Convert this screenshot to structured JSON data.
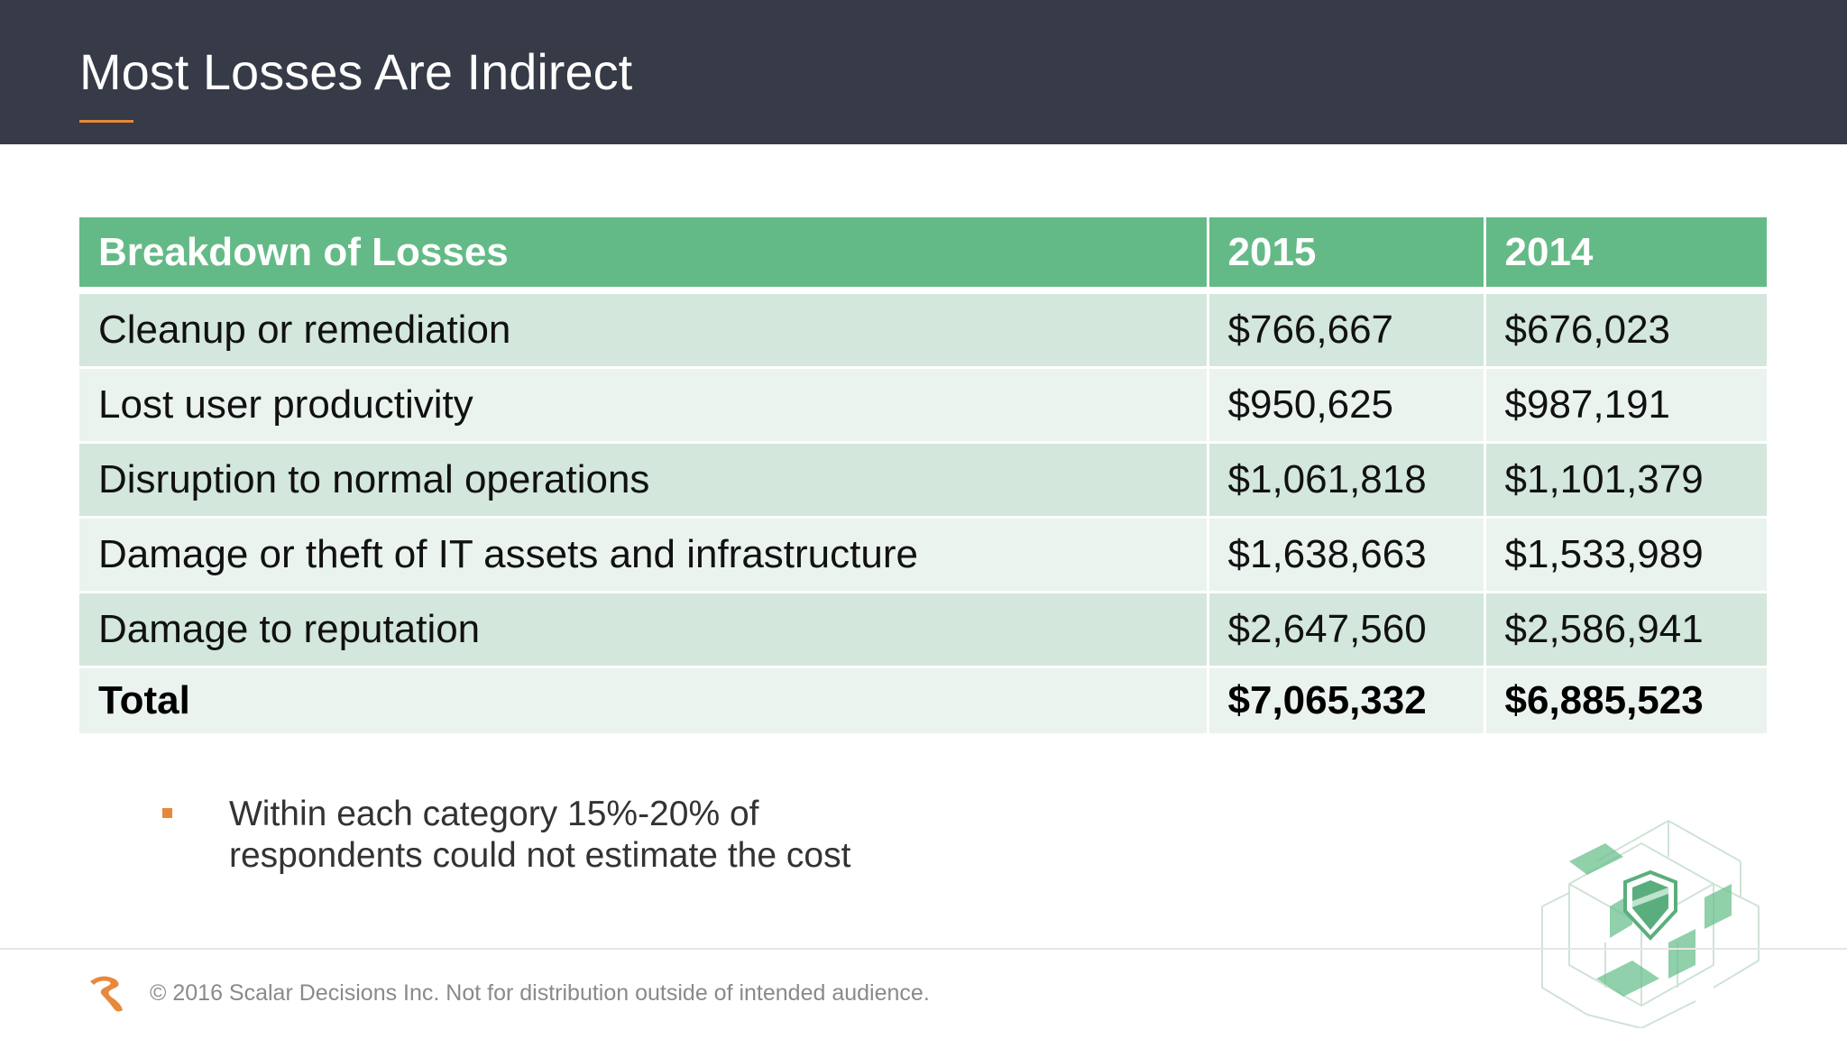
{
  "slide": {
    "title": "Most Losses Are Indirect"
  },
  "table": {
    "headers": [
      "Breakdown of Losses",
      "2015",
      "2014"
    ],
    "rows": [
      {
        "label": "Cleanup or remediation",
        "y2015": "$766,667",
        "y2014": "$676,023"
      },
      {
        "label": "Lost user productivity",
        "y2015": "$950,625",
        "y2014": "$987,191"
      },
      {
        "label": "Disruption to normal operations",
        "y2015": "$1,061,818",
        "y2014": "$1,101,379"
      },
      {
        "label": "Damage or theft of IT assets and infrastructure",
        "y2015": "$1,638,663",
        "y2014": "$1,533,989"
      },
      {
        "label": "Damage to reputation",
        "y2015": "$2,647,560",
        "y2014": "$2,586,941"
      }
    ],
    "total": {
      "label": "Total",
      "y2015": "$7,065,332",
      "y2014": "$6,885,523"
    }
  },
  "bullet": {
    "line1": "Within each category 15%-20% of",
    "line2": "respondents could not estimate the cost"
  },
  "footer": {
    "copyright": "© 2016 Scalar Decisions Inc. Not for distribution outside of intended audience.",
    "logo_icon": "scalar-logo-icon"
  },
  "colors": {
    "header_bg": "#373a47",
    "accent": "#e8883a",
    "table_header": "#64ba86",
    "row_dark": "#d3e7dc",
    "row_light": "#eaf3ee"
  }
}
